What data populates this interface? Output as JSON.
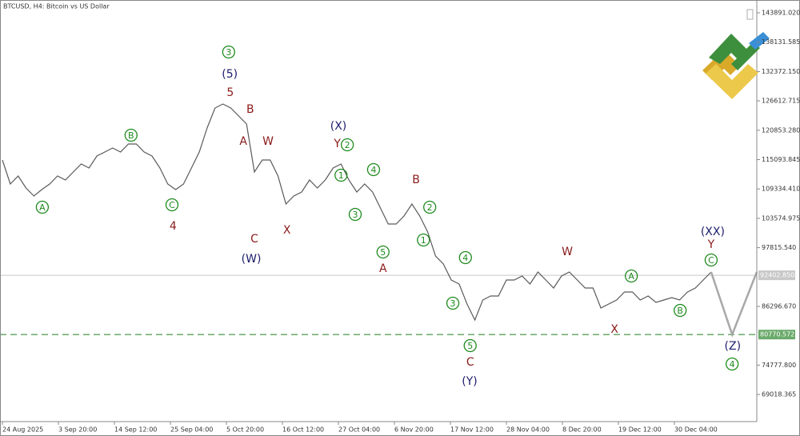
{
  "chart_data": {
    "type": "line",
    "title": "BTCUSD, H4:  Bitcoin vs US Dollar",
    "color": "#5a5a5a",
    "xlim": [
      -0.46,
      143.7
    ],
    "ylim": [
      63700,
      146400
    ],
    "xticks": [
      {
        "value": 0,
        "label": "24 Aug 2025"
      },
      {
        "value": 10.667,
        "label": "3 Sep 20:00"
      },
      {
        "value": 21.333,
        "label": "14 Sep 12:00"
      },
      {
        "value": 32,
        "label": "25 Sep 04:00"
      },
      {
        "value": 42.667,
        "label": "5 Oct 20:00"
      },
      {
        "value": 53.333,
        "label": "16 Oct 12:00"
      },
      {
        "value": 64,
        "label": "27 Oct 04:00"
      },
      {
        "value": 74.667,
        "label": "6 Nov 20:00"
      },
      {
        "value": 85.333,
        "label": "17 Nov 12:00"
      },
      {
        "value": 96,
        "label": "28 Nov 04:00"
      },
      {
        "value": 106.667,
        "label": "8 Dec 20:00"
      },
      {
        "value": 117.333,
        "label": "19 Dec 12:00"
      },
      {
        "value": 128,
        "label": "30 Dec 04:00"
      }
    ],
    "yticks": [
      {
        "value": 143891.02,
        "label": "143891.020"
      },
      138131.585,
      {
        "value": 132372.15,
        "label": "132372.150"
      },
      126612.715,
      {
        "value": 120853.28,
        "label": "120853.280"
      },
      115093.845,
      {
        "value": 109334.41,
        "label": "109334.410"
      },
      103574.975,
      {
        "value": 97815.54,
        "label": "97815.540"
      },
      {
        "value": 86296.67,
        "label": "86296.670"
      },
      {
        "value": 74777.8,
        "label": "74777.800"
      },
      69018.365
    ],
    "x": [
      0,
      1.5,
      3,
      4.5,
      6,
      7.5,
      9,
      10.5,
      12,
      13.5,
      15,
      16.5,
      18,
      19.5,
      21,
      22.5,
      24,
      25.5,
      27,
      28.5,
      30,
      31.5,
      33,
      34.5,
      36,
      37.5,
      39,
      40.5,
      42,
      43.5,
      45,
      46.5,
      48,
      49.5,
      51,
      52.5,
      54,
      55.5,
      57,
      58.5,
      60,
      61.5,
      63,
      64.5,
      66,
      67.5,
      69,
      70.5,
      72,
      73.5,
      75,
      76.5,
      78,
      79.5,
      81,
      82.5,
      84,
      85.5,
      87,
      88.5,
      90,
      91.5,
      93,
      94.5,
      96,
      97.5,
      99,
      100.5,
      102,
      103.5,
      105,
      106.5,
      108,
      109.5,
      111,
      112.5,
      114,
      115.5,
      117,
      118.5,
      120,
      121.5,
      123,
      124.5,
      126,
      127.5,
      129,
      130.5,
      132,
      133.5,
      135
    ],
    "values": [
      115016,
      110308,
      111877,
      109523,
      107954,
      109209,
      110308,
      111877,
      111093,
      112662,
      114231,
      113447,
      115801,
      116585,
      117370,
      116585,
      118155,
      118155,
      116585,
      115801,
      113447,
      110308,
      109209,
      110308,
      113447,
      116585,
      121293,
      125216,
      126001,
      125216,
      123647,
      122078,
      112662,
      115016,
      115016,
      111877,
      106385,
      107954,
      108739,
      111093,
      109523,
      111093,
      113447,
      114231,
      111093,
      108739,
      110308,
      108739,
      105600,
      102462,
      102462,
      104031,
      106385,
      104031,
      100892,
      96185,
      94615,
      91477,
      90692,
      86769,
      83630,
      87553,
      88338,
      88338,
      91477,
      91477,
      92261,
      90692,
      93046,
      91477,
      89907,
      92261,
      93046,
      91477,
      89907,
      89907,
      85984,
      86769,
      87553,
      89123,
      89123,
      87553,
      88338,
      87083,
      87553,
      88024,
      87553,
      89123,
      89907,
      91477,
      93046
    ],
    "projection": {
      "x": [
        135,
        139,
        143.7
      ],
      "values": [
        93046,
        80770.572,
        93046
      ],
      "color": "#a8a8a8"
    },
    "hlines": [
      {
        "value": 92402.85,
        "label": "92402.850",
        "color": "#c8c8c8",
        "dashed": false
      },
      {
        "value": 80770.572,
        "label": "80770.572",
        "color": "#6aaa6a",
        "dashed": true
      }
    ],
    "annotations": [
      {
        "text": "3",
        "circled": true,
        "color": "#1e8a1e",
        "x": 43.1,
        "y": 136202
      },
      {
        "text": "(5)",
        "circled": false,
        "color": "#1c1c6e",
        "x": 43.3,
        "y": 131964
      },
      {
        "text": "5",
        "circled": false,
        "color": "#8b1a1a",
        "x": 43.4,
        "y": 128355
      },
      {
        "text": "B",
        "circled": false,
        "color": "#8b1a1a",
        "x": 47.2,
        "y": 125060
      },
      {
        "text": "A",
        "circled": false,
        "color": "#8b1a1a",
        "x": 45.9,
        "y": 118782
      },
      {
        "text": "W",
        "circled": false,
        "color": "#8b1a1a",
        "x": 50.6,
        "y": 118782
      },
      {
        "text": "C",
        "circled": false,
        "color": "#8b1a1a",
        "x": 48.0,
        "y": 99637
      },
      {
        "text": "(W)",
        "circled": false,
        "color": "#1c1c6e",
        "x": 47.4,
        "y": 95714
      },
      {
        "text": "B",
        "circled": true,
        "color": "#1e8a1e",
        "x": 24.5,
        "y": 119881
      },
      {
        "text": "A",
        "circled": true,
        "color": "#1e8a1e",
        "x": 7.6,
        "y": 105757
      },
      {
        "text": "C",
        "circled": true,
        "color": "#1e8a1e",
        "x": 32.3,
        "y": 106228
      },
      {
        "text": "4",
        "circled": false,
        "color": "#8b1a1a",
        "x": 32.5,
        "y": 102148
      },
      {
        "text": "X",
        "circled": false,
        "color": "#8b1a1a",
        "x": 54.2,
        "y": 101363
      },
      {
        "text": "(X)",
        "circled": false,
        "color": "#1c1c6e",
        "x": 64.0,
        "y": 121764
      },
      {
        "text": "Y",
        "circled": false,
        "color": "#8b1a1a",
        "x": 63.8,
        "y": 118312
      },
      {
        "text": "2",
        "circled": true,
        "color": "#1e8a1e",
        "x": 65.7,
        "y": 117998
      },
      {
        "text": "1",
        "circled": true,
        "color": "#1e8a1e",
        "x": 64.5,
        "y": 112035
      },
      {
        "text": "4",
        "circled": true,
        "color": "#1e8a1e",
        "x": 70.7,
        "y": 113135
      },
      {
        "text": "3",
        "circled": true,
        "color": "#1e8a1e",
        "x": 67.2,
        "y": 104345
      },
      {
        "text": "B",
        "circled": false,
        "color": "#8b1a1a",
        "x": 78.8,
        "y": 111251
      },
      {
        "text": "2",
        "circled": true,
        "color": "#1e8a1e",
        "x": 81.4,
        "y": 105757
      },
      {
        "text": "1",
        "circled": true,
        "color": "#1e8a1e",
        "x": 80.2,
        "y": 99323
      },
      {
        "text": "5",
        "circled": true,
        "color": "#1e8a1e",
        "x": 72.5,
        "y": 96969
      },
      {
        "text": "A",
        "circled": false,
        "color": "#8b1a1a",
        "x": 72.5,
        "y": 93830
      },
      {
        "text": "4",
        "circled": true,
        "color": "#1e8a1e",
        "x": 88.2,
        "y": 95871
      },
      {
        "text": "3",
        "circled": true,
        "color": "#1e8a1e",
        "x": 85.8,
        "y": 86926
      },
      {
        "text": "5",
        "circled": true,
        "color": "#1e8a1e",
        "x": 89.1,
        "y": 78608
      },
      {
        "text": "C",
        "circled": false,
        "color": "#8b1a1a",
        "x": 89.1,
        "y": 75470
      },
      {
        "text": "(Y)",
        "circled": false,
        "color": "#1c1c6e",
        "x": 89.0,
        "y": 71704
      },
      {
        "text": "W",
        "circled": false,
        "color": "#8b1a1a",
        "x": 107.6,
        "y": 97126
      },
      {
        "text": "A",
        "circled": true,
        "color": "#1e8a1e",
        "x": 119.8,
        "y": 92261
      },
      {
        "text": "B",
        "circled": true,
        "color": "#1e8a1e",
        "x": 129.1,
        "y": 85513
      },
      {
        "text": "X",
        "circled": false,
        "color": "#8b1a1a",
        "x": 116.6,
        "y": 81904
      },
      {
        "text": "(XX)",
        "circled": false,
        "color": "#1c1c6e",
        "x": 135.3,
        "y": 101049
      },
      {
        "text": "Y",
        "circled": false,
        "color": "#8b1a1a",
        "x": 135.0,
        "y": 98538
      },
      {
        "text": "C",
        "circled": true,
        "color": "#1e8a1e",
        "x": 135.0,
        "y": 95400
      },
      {
        "text": "(Z)",
        "circled": false,
        "color": "#1c1c6e",
        "x": 139.1,
        "y": 78608
      },
      {
        "text": "4",
        "circled": true,
        "color": "#1e8a1e",
        "x": 139.0,
        "y": 75000
      }
    ]
  }
}
